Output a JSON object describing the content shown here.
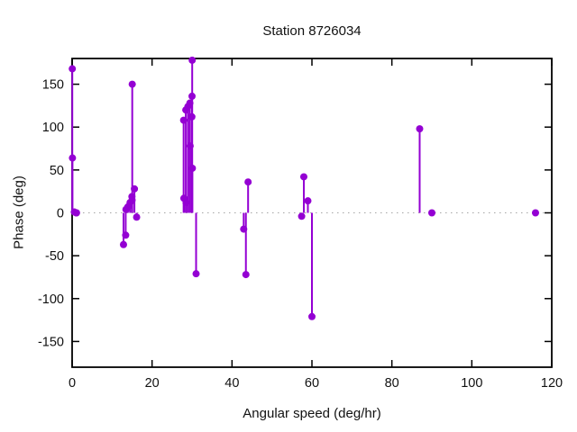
{
  "chart_data": {
    "type": "scatter",
    "style": "impulses-with-points",
    "title": "Station 8726034",
    "xlabel": "Angular speed (deg/hr)",
    "ylabel": "Phase (deg)",
    "xlim": [
      0,
      120
    ],
    "ylim": [
      -180,
      180
    ],
    "xticks": [
      0,
      20,
      40,
      60,
      80,
      100,
      120
    ],
    "yticks": [
      -150,
      -100,
      -50,
      0,
      50,
      100,
      150
    ],
    "grid": false,
    "zero_axis": "dotted",
    "legend": "none",
    "colors": {
      "accent": "#9400d3",
      "axis": "#000000",
      "zero_line": "#a6a6a6",
      "background": "#ffffff"
    },
    "series": [
      {
        "name": "phase",
        "color": "#9400d3",
        "marker": "filled-circle",
        "points": [
          [
            0.041,
            168
          ],
          [
            0.082,
            64
          ],
          [
            0.544,
            1
          ],
          [
            1.016,
            0
          ],
          [
            1.098,
            0
          ],
          [
            12.854,
            -37
          ],
          [
            13.399,
            -26
          ],
          [
            13.471,
            4
          ],
          [
            13.943,
            7
          ],
          [
            14.497,
            12
          ],
          [
            14.959,
            19
          ],
          [
            15.0,
            15
          ],
          [
            15.041,
            150
          ],
          [
            15.585,
            28
          ],
          [
            16.139,
            -5
          ],
          [
            27.895,
            108
          ],
          [
            27.968,
            17
          ],
          [
            28.44,
            120
          ],
          [
            28.513,
            12
          ],
          [
            28.984,
            124
          ],
          [
            29.456,
            128
          ],
          [
            29.528,
            78
          ],
          [
            29.959,
            112
          ],
          [
            30.0,
            136
          ],
          [
            30.041,
            178
          ],
          [
            30.082,
            52
          ],
          [
            31.016,
            -71
          ],
          [
            42.927,
            -19
          ],
          [
            43.476,
            -72
          ],
          [
            44.025,
            36
          ],
          [
            57.424,
            -4
          ],
          [
            57.968,
            42
          ],
          [
            58.984,
            14
          ],
          [
            60.0,
            -121
          ],
          [
            86.952,
            98
          ],
          [
            90.0,
            0
          ],
          [
            115.936,
            0
          ]
        ]
      }
    ]
  }
}
